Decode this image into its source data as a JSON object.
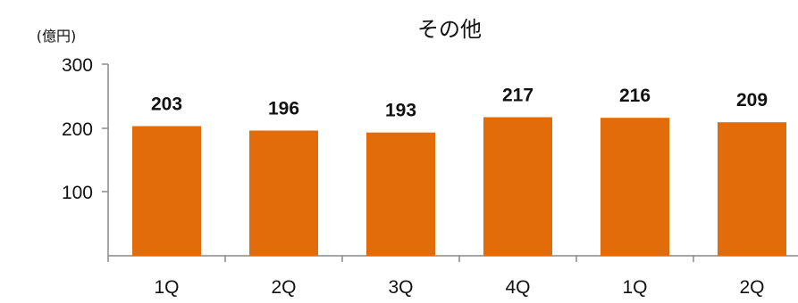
{
  "chart_data": {
    "type": "bar",
    "title": "その他",
    "unit_label": "(億円)",
    "categories": [
      "1Q",
      "2Q",
      "3Q",
      "4Q",
      "1Q",
      "2Q"
    ],
    "values": [
      203,
      196,
      193,
      217,
      216,
      209
    ],
    "data_labels": [
      "203",
      "196",
      "193",
      "217",
      "216",
      "209"
    ],
    "yticks": [
      "100",
      "200",
      "300"
    ],
    "ylim": [
      0,
      300
    ],
    "xlabel": "",
    "ylabel": "",
    "grid": false,
    "legend": "none",
    "bar_color": "#E36C0A",
    "axis_color": "#888888"
  }
}
